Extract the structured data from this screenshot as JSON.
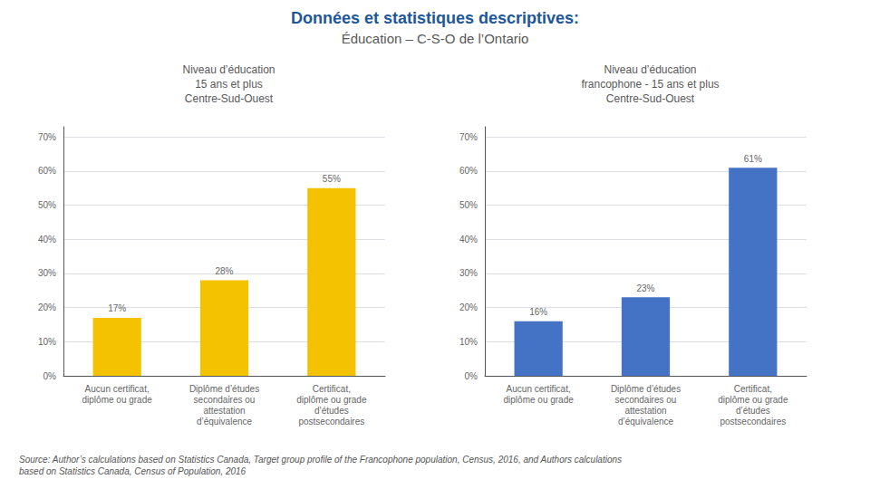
{
  "title": "Données et statistiques descriptives:",
  "subtitle": "Éducation – C-S-O de l’Ontario",
  "annotations": [
    "Source: Author’s calculations based on Statistics Canada, Target group profile of the Francophone population, Census, 2016, and Authors calculations\nbased on Statistics Canada, Census of Population, 2016"
  ],
  "chart_data": [
    {
      "type": "bar",
      "title": "Niveau d’éducation\n15 ans et plus\nCentre-Sud-Ouest",
      "categories": [
        "Aucun certificat,\ndiplôme ou grade",
        "Diplôme d’études\nsecondaires ou\nattestation\nd’équivalence",
        "Certificat,\ndiplôme ou grade\nd’études\npostsecondaires"
      ],
      "values": [
        17,
        28,
        55
      ],
      "value_labels": [
        "17%",
        "28%",
        "55%"
      ],
      "color": "#F5C200",
      "ylim": [
        0,
        73
      ],
      "yticks": [
        {
          "value": 0,
          "label": "0%"
        },
        {
          "value": 10,
          "label": "10%"
        },
        {
          "value": 20,
          "label": "20%"
        },
        {
          "value": 30,
          "label": "30%"
        },
        {
          "value": 40,
          "label": "40%"
        },
        {
          "value": 50,
          "label": "50%"
        },
        {
          "value": 60,
          "label": "60%"
        },
        {
          "value": 70,
          "label": "70%"
        }
      ],
      "grid": true,
      "data_labels": true
    },
    {
      "type": "bar",
      "title": "Niveau d’éducation\nfrancophone - 15 ans et plus\nCentre-Sud-Ouest",
      "categories": [
        "Aucun certificat,\ndiplôme ou grade",
        "Diplôme d’études\nsecondaires ou\nattestation\nd’équivalence",
        "Certificat,\ndiplôme ou grade\nd’études\npostsecondaires"
      ],
      "values": [
        16,
        23,
        61
      ],
      "value_labels": [
        "16%",
        "23%",
        "61%"
      ],
      "color": "#4472C4",
      "ylim": [
        0,
        73
      ],
      "yticks": [
        {
          "value": 0,
          "label": "0%"
        },
        {
          "value": 10,
          "label": "10%"
        },
        {
          "value": 20,
          "label": "20%"
        },
        {
          "value": 30,
          "label": "30%"
        },
        {
          "value": 40,
          "label": "40%"
        },
        {
          "value": 50,
          "label": "50%"
        },
        {
          "value": 60,
          "label": "60%"
        },
        {
          "value": 70,
          "label": "70%"
        }
      ],
      "grid": true,
      "data_labels": true
    }
  ]
}
